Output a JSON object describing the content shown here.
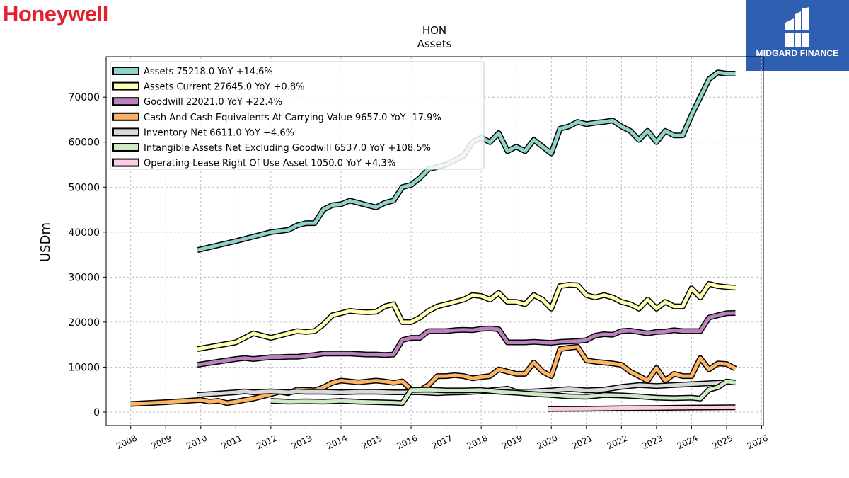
{
  "brand": {
    "left_logo": "Honeywell",
    "right_logo": "MIDGARD FINANCE"
  },
  "chart_data": {
    "type": "line",
    "title": "HON",
    "subtitle": "Assets",
    "xlabel": "",
    "ylabel": "USDm",
    "xlim": [
      2007.3,
      2026.05
    ],
    "ylim": [
      -3000,
      79000
    ],
    "yticks": [
      0,
      10000,
      20000,
      30000,
      40000,
      50000,
      60000,
      70000
    ],
    "xticks": [
      2008,
      2009,
      2010,
      2011,
      2012,
      2013,
      2014,
      2015,
      2016,
      2017,
      2018,
      2019,
      2020,
      2021,
      2022,
      2023,
      2024,
      2025,
      2026
    ],
    "grid": true,
    "legend_position": "upper-left",
    "series": [
      {
        "name": "Assets  75218.0 YoY +14.6%",
        "color": "#8dd3c7",
        "x": [
          2009.9,
          2011.0,
          2012.0,
          2012.5,
          2012.75,
          2013.0,
          2013.25,
          2013.5,
          2013.75,
          2014.0,
          2014.25,
          2014.5,
          2014.75,
          2015.0,
          2015.25,
          2015.5,
          2015.75,
          2016.0,
          2016.25,
          2016.5,
          2016.75,
          2017.0,
          2017.25,
          2017.5,
          2017.75,
          2018.0,
          2018.25,
          2018.5,
          2018.75,
          2019.0,
          2019.25,
          2019.5,
          2019.75,
          2020.0,
          2020.25,
          2020.5,
          2020.75,
          2021.0,
          2021.25,
          2021.5,
          2021.75,
          2022.0,
          2022.25,
          2022.5,
          2022.75,
          2023.0,
          2023.25,
          2023.5,
          2023.75,
          2024.0,
          2024.25,
          2024.5,
          2024.75,
          2025.0,
          2025.25
        ],
        "y": [
          36000,
          38000,
          40000,
          40500,
          41500,
          42000,
          42000,
          45000,
          46000,
          46200,
          47000,
          46500,
          46000,
          45500,
          46500,
          47000,
          50000,
          50500,
          52000,
          54000,
          54500,
          55000,
          56000,
          57000,
          60000,
          61000,
          60000,
          62000,
          58000,
          59000,
          58000,
          60500,
          59000,
          57500,
          63000,
          63500,
          64500,
          64000,
          64300,
          64500,
          64800,
          63500,
          62500,
          60500,
          62500,
          60000,
          62500,
          61500,
          61500,
          66000,
          70000,
          74000,
          75500,
          75218,
          75218
        ]
      },
      {
        "name": "Assets Current  27645.0 YoY +0.8%",
        "color": "#ffffb3",
        "x": [
          2009.9,
          2011.0,
          2011.25,
          2011.5,
          2011.75,
          2012.0,
          2012.25,
          2012.5,
          2012.75,
          2013.0,
          2013.25,
          2013.5,
          2013.75,
          2014.0,
          2014.25,
          2014.5,
          2014.75,
          2015.0,
          2015.25,
          2015.5,
          2015.75,
          2016.0,
          2016.25,
          2016.5,
          2016.75,
          2017.0,
          2017.25,
          2017.5,
          2017.75,
          2018.0,
          2018.25,
          2018.5,
          2018.75,
          2019.0,
          2019.25,
          2019.5,
          2019.75,
          2020.0,
          2020.25,
          2020.5,
          2020.75,
          2021.0,
          2021.25,
          2021.5,
          2021.75,
          2022.0,
          2022.25,
          2022.5,
          2022.75,
          2023.0,
          2023.25,
          2023.5,
          2023.75,
          2024.0,
          2024.25,
          2024.5,
          2024.75,
          2025.0,
          2025.25
        ],
        "y": [
          14000,
          15500,
          16500,
          17500,
          17000,
          16500,
          17000,
          17500,
          18000,
          17800,
          18000,
          19500,
          21500,
          22000,
          22500,
          22300,
          22200,
          22300,
          23500,
          24000,
          20000,
          20000,
          21000,
          22500,
          23500,
          24000,
          24500,
          25000,
          26000,
          25800,
          25000,
          26500,
          24500,
          24500,
          24000,
          26000,
          25000,
          23000,
          28000,
          28300,
          28200,
          26000,
          25500,
          26000,
          25500,
          24500,
          24000,
          23000,
          25000,
          23000,
          24500,
          23500,
          23500,
          27500,
          25500,
          28500,
          28000,
          27800,
          27645
        ]
      },
      {
        "name": "Goodwill  22021.0 YoY +22.4%",
        "color": "#bc80bd",
        "x": [
          2009.9,
          2011.0,
          2011.25,
          2011.5,
          2011.75,
          2012.0,
          2012.25,
          2012.5,
          2012.75,
          2013.0,
          2013.25,
          2013.5,
          2013.75,
          2014.0,
          2014.25,
          2014.5,
          2014.75,
          2015.0,
          2015.25,
          2015.5,
          2015.75,
          2016.0,
          2016.25,
          2016.5,
          2016.75,
          2017.0,
          2017.25,
          2017.5,
          2017.75,
          2018.0,
          2018.25,
          2018.5,
          2018.75,
          2019.0,
          2019.25,
          2019.5,
          2019.75,
          2020.0,
          2020.25,
          2020.5,
          2020.75,
          2021.0,
          2021.25,
          2021.5,
          2021.75,
          2022.0,
          2022.25,
          2022.5,
          2022.75,
          2023.0,
          2023.25,
          2023.5,
          2023.75,
          2024.0,
          2024.25,
          2024.5,
          2024.75,
          2025.0,
          2025.25
        ],
        "y": [
          10500,
          11800,
          12000,
          11800,
          12000,
          12200,
          12200,
          12300,
          12300,
          12500,
          12700,
          13000,
          13000,
          13000,
          13000,
          12900,
          12800,
          12800,
          12700,
          12800,
          16000,
          16500,
          16500,
          18000,
          18000,
          18000,
          18200,
          18300,
          18200,
          18500,
          18600,
          18400,
          15500,
          15500,
          15500,
          15600,
          15500,
          15400,
          15600,
          15700,
          15800,
          16000,
          17000,
          17300,
          17200,
          18000,
          18100,
          17800,
          17500,
          17800,
          17900,
          18200,
          18000,
          18000,
          18000,
          21000,
          21500,
          22000,
          22021
        ]
      },
      {
        "name": "Cash And Cash Equivalents At Carrying Value  9657.0 YoY -17.9%",
        "color": "#fdb462",
        "x": [
          2008.0,
          2009.0,
          2010.0,
          2010.25,
          2010.5,
          2010.75,
          2011.0,
          2011.25,
          2011.5,
          2011.75,
          2012.0,
          2012.25,
          2012.5,
          2012.75,
          2013.0,
          2013.25,
          2013.5,
          2013.75,
          2014.0,
          2014.25,
          2014.5,
          2014.75,
          2015.0,
          2015.25,
          2015.5,
          2015.75,
          2016.0,
          2016.25,
          2016.5,
          2016.75,
          2017.0,
          2017.25,
          2017.5,
          2017.75,
          2018.0,
          2018.25,
          2018.5,
          2018.75,
          2019.0,
          2019.25,
          2019.5,
          2019.75,
          2020.0,
          2020.25,
          2020.5,
          2020.75,
          2021.0,
          2021.25,
          2021.5,
          2021.75,
          2022.0,
          2022.25,
          2022.5,
          2022.75,
          2023.0,
          2023.25,
          2023.5,
          2023.75,
          2024.0,
          2024.25,
          2024.5,
          2024.75,
          2025.0,
          2025.25
        ],
        "y": [
          1800,
          2200,
          2700,
          2300,
          2500,
          2000,
          2300,
          2700,
          3000,
          3500,
          4000,
          4500,
          4200,
          5000,
          4900,
          4800,
          5500,
          6500,
          7000,
          6800,
          6600,
          6800,
          7000,
          6800,
          6500,
          6800,
          5000,
          4800,
          6000,
          8000,
          8000,
          8200,
          8000,
          7500,
          7800,
          8000,
          9500,
          9000,
          8500,
          8500,
          11000,
          9000,
          8000,
          14000,
          14300,
          14500,
          11500,
          11200,
          11000,
          10800,
          10500,
          9000,
          8000,
          7000,
          9800,
          7000,
          8500,
          8000,
          8000,
          12000,
          9500,
          10800,
          10700,
          9657
        ]
      },
      {
        "name": "Inventory Net  6611.0 YoY +4.6%",
        "color": "#d9d9d9",
        "x": [
          2009.9,
          2011.0,
          2011.25,
          2011.5,
          2011.75,
          2012.0,
          2012.25,
          2012.5,
          2012.75,
          2013.0,
          2013.5,
          2014.0,
          2014.5,
          2015.0,
          2015.5,
          2016.0,
          2016.25,
          2016.5,
          2016.75,
          2017.0,
          2017.5,
          2018.0,
          2018.25,
          2018.5,
          2018.75,
          2019.0,
          2019.5,
          2020.0,
          2020.25,
          2020.5,
          2020.75,
          2021.0,
          2021.5,
          2022.0,
          2022.5,
          2023.0,
          2023.5,
          2024.0,
          2024.5,
          2025.0,
          2025.25
        ],
        "y": [
          3800,
          4400,
          4600,
          4400,
          4500,
          4600,
          4500,
          4400,
          4600,
          4500,
          4500,
          4400,
          4500,
          4500,
          4400,
          4400,
          4400,
          4300,
          4200,
          4300,
          4400,
          4600,
          4800,
          5000,
          5200,
          4500,
          4600,
          4800,
          5000,
          5100,
          5000,
          4800,
          5000,
          5600,
          6000,
          5800,
          6000,
          6200,
          6400,
          6600,
          6611
        ]
      },
      {
        "name": "Intangible Assets Net Excluding Goodwill  6537.0 YoY +108.5%",
        "color": "#ccebc5",
        "x": [
          2012.0,
          2012.5,
          2013.0,
          2013.5,
          2014.0,
          2014.5,
          2015.0,
          2015.5,
          2015.75,
          2016.0,
          2016.5,
          2017.0,
          2017.5,
          2018.0,
          2018.5,
          2019.0,
          2019.5,
          2020.0,
          2020.5,
          2021.0,
          2021.5,
          2022.0,
          2022.5,
          2023.0,
          2023.5,
          2024.0,
          2024.25,
          2024.5,
          2024.75,
          2025.0,
          2025.25
        ],
        "y": [
          2500,
          2300,
          2400,
          2300,
          2500,
          2300,
          2200,
          2100,
          2000,
          4900,
          5000,
          4800,
          4800,
          4900,
          4500,
          4300,
          4000,
          3800,
          3500,
          3400,
          3800,
          3700,
          3500,
          3200,
          3100,
          3200,
          3000,
          5000,
          5500,
          6800,
          6537
        ]
      },
      {
        "name": "Operating Lease Right Of Use Asset  1050.0 YoY +4.3%",
        "color": "#fccde5",
        "x": [
          2019.9,
          2020.5,
          2021.0,
          2021.5,
          2022.0,
          2022.5,
          2023.0,
          2023.5,
          2024.0,
          2024.5,
          2025.0,
          2025.25
        ],
        "y": [
          700,
          720,
          750,
          800,
          850,
          870,
          900,
          950,
          1000,
          1010,
          1050,
          1050
        ]
      }
    ]
  }
}
